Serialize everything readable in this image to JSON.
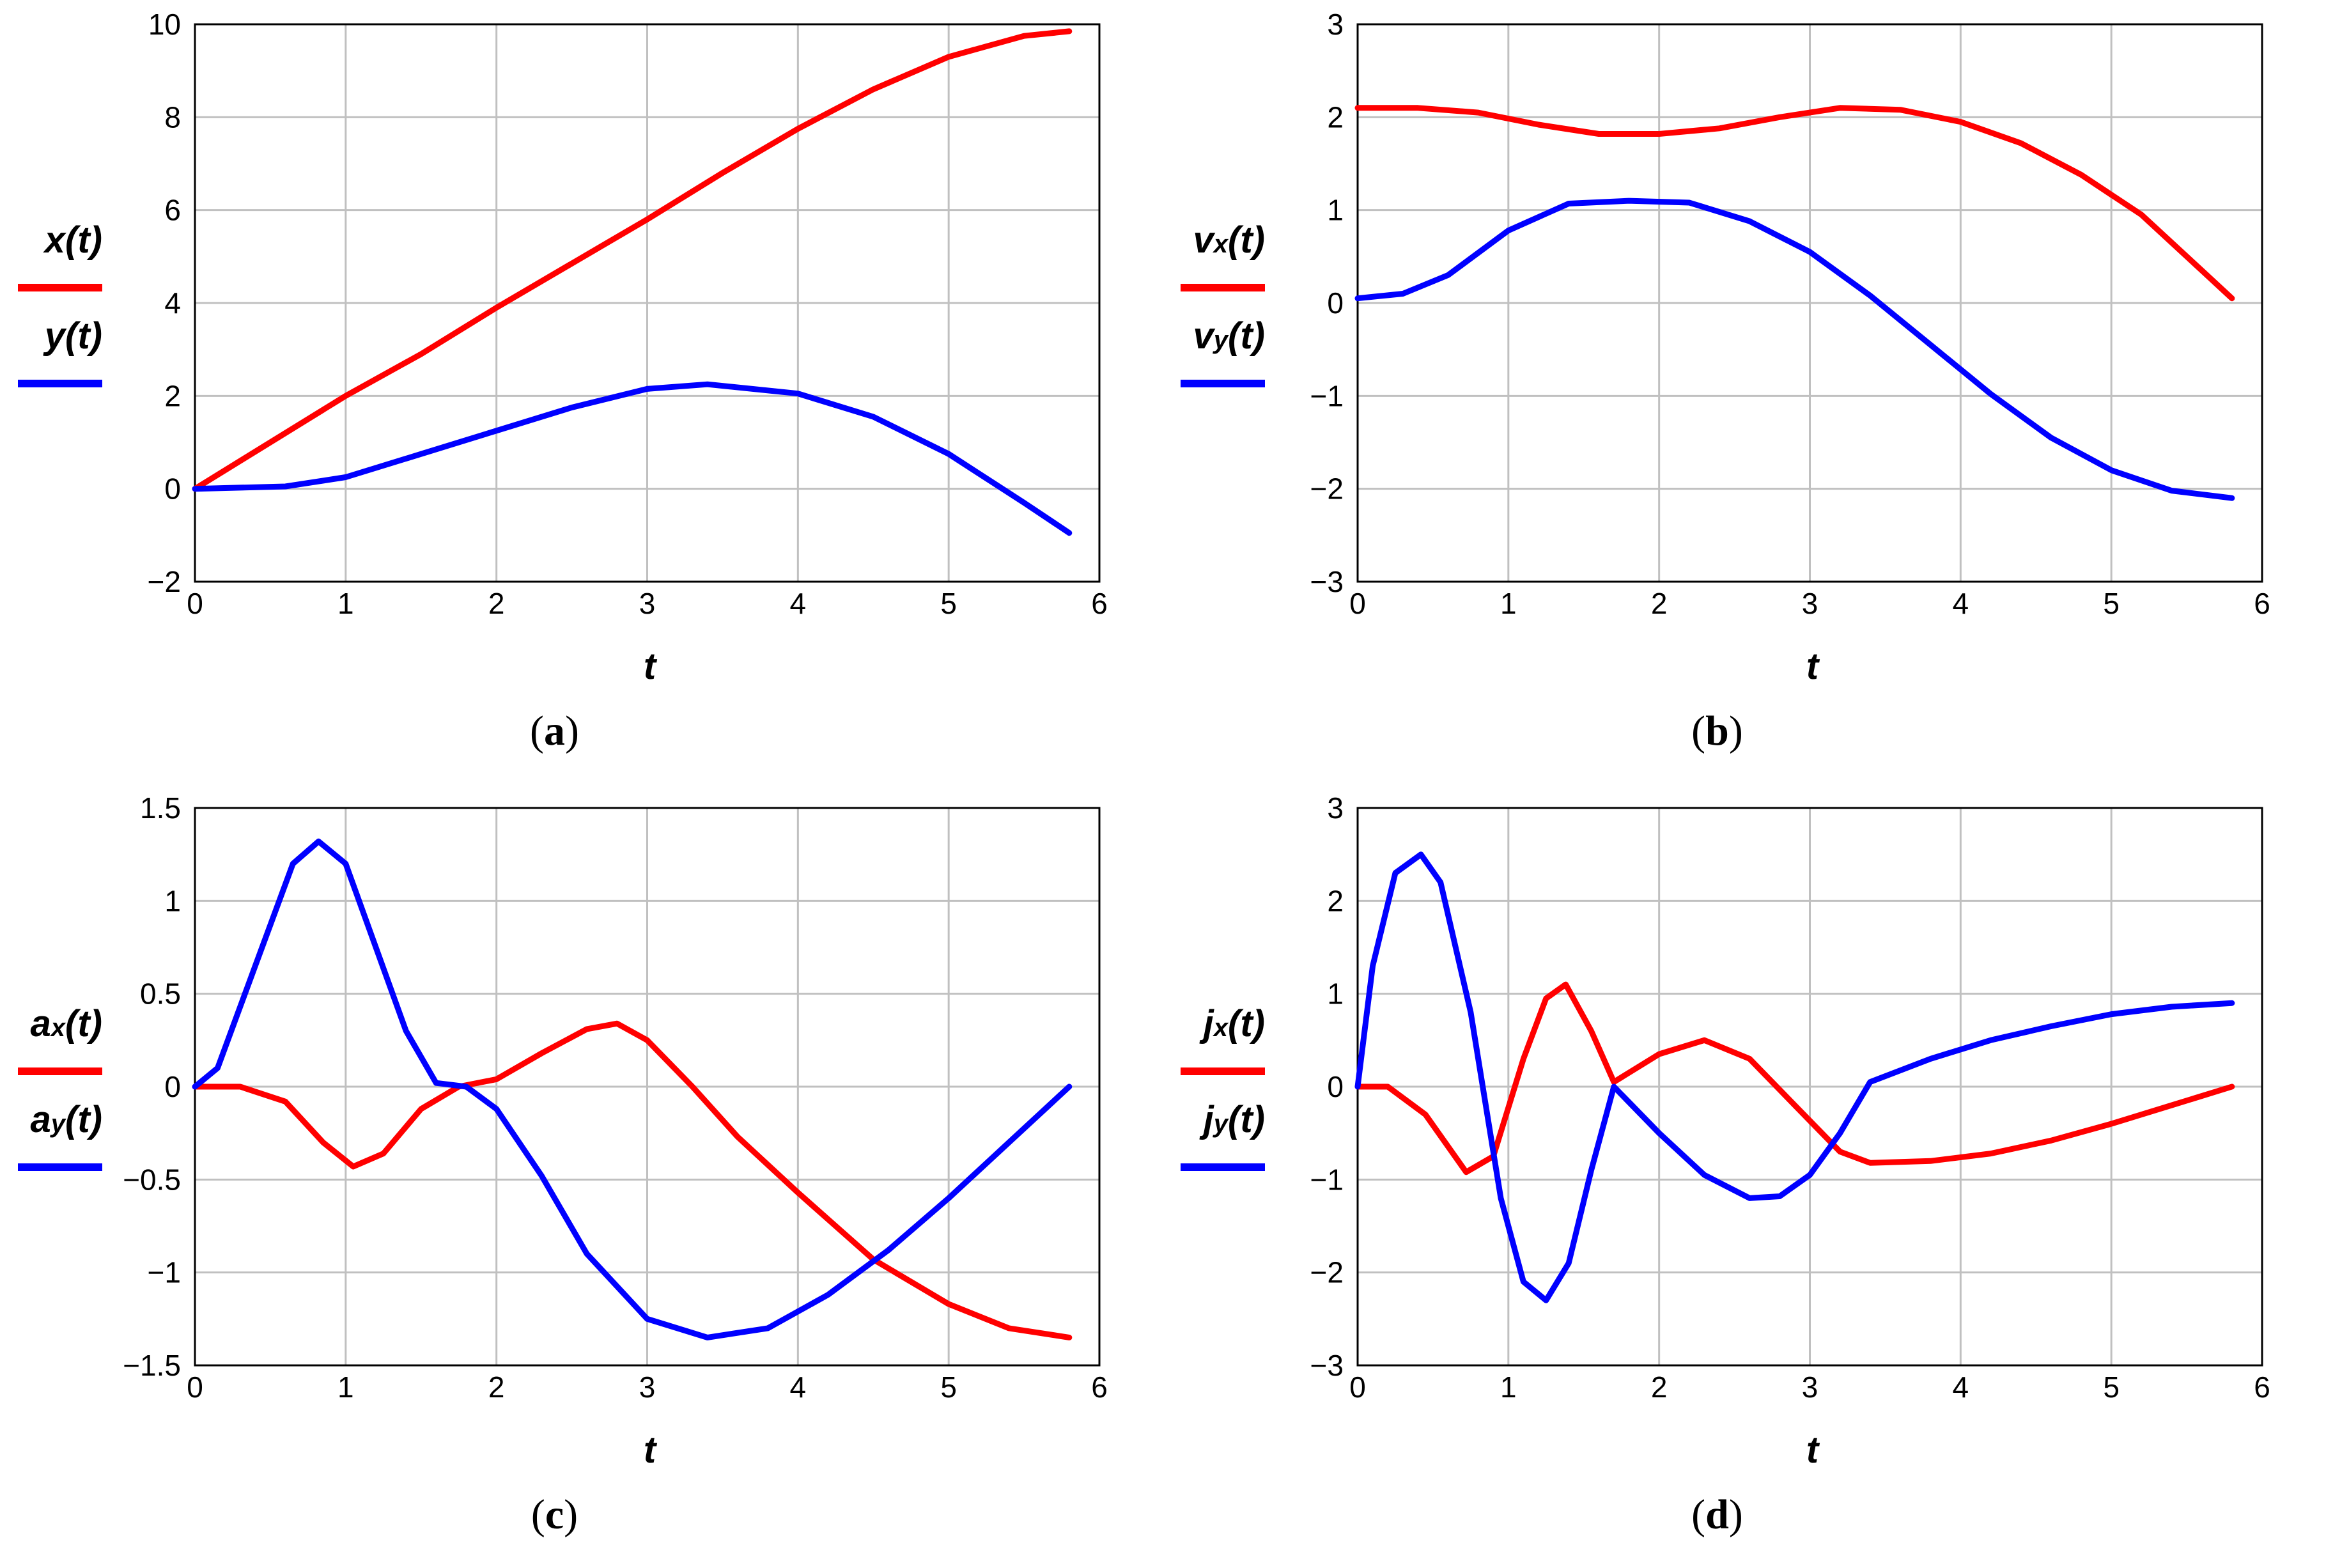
{
  "chart_data": [
    {
      "id": "a",
      "type": "line",
      "caption": "(a)",
      "caption_letter": "a",
      "xlabel": "t",
      "xlim": [
        0,
        6
      ],
      "ylim": [
        -2,
        10
      ],
      "xticks": [
        "0",
        "1",
        "2",
        "3",
        "4",
        "5",
        "6"
      ],
      "yticks": [
        "−2",
        "0",
        "2",
        "4",
        "6",
        "8",
        "10"
      ],
      "grid": true,
      "legend_position": "left",
      "series": [
        {
          "name": "x(t)",
          "name_main": "x",
          "name_sub": "",
          "name_suffix": "(t)",
          "color": "#ff0000",
          "x": [
            0,
            0.5,
            1,
            1.5,
            2,
            2.5,
            3,
            3.5,
            4,
            4.5,
            5,
            5.5,
            5.8
          ],
          "y": [
            0,
            1,
            2,
            2.9,
            3.9,
            4.85,
            5.8,
            6.8,
            7.75,
            8.6,
            9.3,
            9.75,
            9.85
          ]
        },
        {
          "name": "y(t)",
          "name_main": "y",
          "name_sub": "",
          "name_suffix": "(t)",
          "color": "#0000ff",
          "x": [
            0,
            0.6,
            1,
            1.5,
            2,
            2.5,
            3,
            3.4,
            4,
            4.5,
            5,
            5.5,
            5.8
          ],
          "y": [
            0,
            0.05,
            0.25,
            0.75,
            1.25,
            1.75,
            2.15,
            2.25,
            2.05,
            1.55,
            0.75,
            -0.3,
            -0.95
          ]
        }
      ]
    },
    {
      "id": "b",
      "type": "line",
      "caption": "(b)",
      "caption_letter": "b",
      "xlabel": "t",
      "xlim": [
        0,
        6
      ],
      "ylim": [
        -3,
        3
      ],
      "xticks": [
        "0",
        "1",
        "2",
        "3",
        "4",
        "5",
        "6"
      ],
      "yticks": [
        "−3",
        "−2",
        "−1",
        "0",
        "1",
        "2",
        "3"
      ],
      "grid": true,
      "legend_position": "left",
      "series": [
        {
          "name": "vx(t)",
          "name_main": "v",
          "name_sub": "x",
          "name_suffix": "(t)",
          "color": "#ff0000",
          "x": [
            0,
            0.4,
            0.8,
            1.2,
            1.6,
            2,
            2.4,
            2.8,
            3.2,
            3.6,
            4,
            4.4,
            4.8,
            5.2,
            5.6,
            5.8
          ],
          "y": [
            2.1,
            2.1,
            2.05,
            1.92,
            1.82,
            1.82,
            1.88,
            2.0,
            2.1,
            2.08,
            1.95,
            1.72,
            1.38,
            0.95,
            0.35,
            0.05
          ]
        },
        {
          "name": "vy(t)",
          "name_main": "v",
          "name_sub": "y",
          "name_suffix": "(t)",
          "color": "#0000ff",
          "x": [
            0,
            0.3,
            0.6,
            1,
            1.4,
            1.8,
            2.2,
            2.6,
            3,
            3.4,
            3.8,
            4.2,
            4.6,
            5,
            5.4,
            5.8
          ],
          "y": [
            0.05,
            0.1,
            0.3,
            0.78,
            1.07,
            1.1,
            1.08,
            0.88,
            0.55,
            0.08,
            -0.45,
            -0.98,
            -1.45,
            -1.8,
            -2.02,
            -2.1
          ]
        }
      ]
    },
    {
      "id": "c",
      "type": "line",
      "caption": "(c)",
      "caption_letter": "c",
      "xlabel": "t",
      "xlim": [
        0,
        6
      ],
      "ylim": [
        -1.5,
        1.5
      ],
      "xticks": [
        "0",
        "1",
        "2",
        "3",
        "4",
        "5",
        "6"
      ],
      "yticks": [
        "−1.5",
        "−1",
        "−0.5",
        "0",
        "0.5",
        "1",
        "1.5"
      ],
      "grid": true,
      "legend_position": "left",
      "series": [
        {
          "name": "ax(t)",
          "name_main": "a",
          "name_sub": "x",
          "name_suffix": "(t)",
          "color": "#ff0000",
          "x": [
            0,
            0.3,
            0.6,
            0.85,
            1.05,
            1.25,
            1.5,
            1.75,
            2,
            2.3,
            2.6,
            2.8,
            3,
            3.3,
            3.6,
            4,
            4.5,
            5,
            5.4,
            5.8
          ],
          "y": [
            0,
            0,
            -0.08,
            -0.3,
            -0.43,
            -0.36,
            -0.12,
            0,
            0.04,
            0.18,
            0.31,
            0.34,
            0.25,
            0.0,
            -0.27,
            -0.57,
            -0.93,
            -1.17,
            -1.3,
            -1.35
          ]
        },
        {
          "name": "ay(t)",
          "name_main": "a",
          "name_sub": "y",
          "name_suffix": "(t)",
          "color": "#0000ff",
          "x": [
            0,
            0.15,
            0.4,
            0.65,
            0.82,
            1,
            1.2,
            1.4,
            1.6,
            1.8,
            2,
            2.3,
            2.6,
            3,
            3.4,
            3.8,
            4.2,
            4.6,
            5,
            5.4,
            5.8
          ],
          "y": [
            0,
            0.1,
            0.65,
            1.2,
            1.32,
            1.2,
            0.75,
            0.3,
            0.02,
            0,
            -0.12,
            -0.48,
            -0.9,
            -1.25,
            -1.35,
            -1.3,
            -1.12,
            -0.88,
            -0.6,
            -0.3,
            0
          ]
        }
      ]
    },
    {
      "id": "d",
      "type": "line",
      "caption": "(d)",
      "caption_letter": "d",
      "xlabel": "t",
      "xlim": [
        0,
        6
      ],
      "ylim": [
        -3,
        3
      ],
      "xticks": [
        "0",
        "1",
        "2",
        "3",
        "4",
        "5",
        "6"
      ],
      "yticks": [
        "−3",
        "−2",
        "−1",
        "0",
        "1",
        "2",
        "3"
      ],
      "grid": true,
      "legend_position": "left",
      "series": [
        {
          "name": "jx(t)",
          "name_main": "j",
          "name_sub": "x",
          "name_suffix": "(t)",
          "color": "#ff0000",
          "x": [
            0,
            0.2,
            0.45,
            0.72,
            0.9,
            1.1,
            1.25,
            1.38,
            1.55,
            1.7,
            2,
            2.3,
            2.6,
            2.9,
            3.2,
            3.4,
            3.8,
            4.2,
            4.6,
            5,
            5.4,
            5.8
          ],
          "y": [
            0,
            0,
            -0.3,
            -0.92,
            -0.75,
            0.3,
            0.95,
            1.1,
            0.6,
            0.05,
            0.35,
            0.5,
            0.3,
            -0.2,
            -0.7,
            -0.82,
            -0.8,
            -0.72,
            -0.58,
            -0.4,
            -0.2,
            0
          ]
        },
        {
          "name": "jy(t)",
          "name_main": "j",
          "name_sub": "y",
          "name_suffix": "(t)",
          "color": "#0000ff",
          "x": [
            0,
            0.1,
            0.25,
            0.42,
            0.55,
            0.75,
            0.95,
            1.1,
            1.25,
            1.4,
            1.55,
            1.7,
            2,
            2.3,
            2.6,
            2.8,
            3,
            3.2,
            3.4,
            3.8,
            4.2,
            4.6,
            5,
            5.4,
            5.8
          ],
          "y": [
            0,
            1.3,
            2.3,
            2.5,
            2.2,
            0.8,
            -1.2,
            -2.1,
            -2.3,
            -1.9,
            -0.9,
            0,
            -0.5,
            -0.95,
            -1.2,
            -1.18,
            -0.95,
            -0.5,
            0.05,
            0.3,
            0.5,
            0.65,
            0.78,
            0.86,
            0.9
          ]
        }
      ]
    }
  ]
}
